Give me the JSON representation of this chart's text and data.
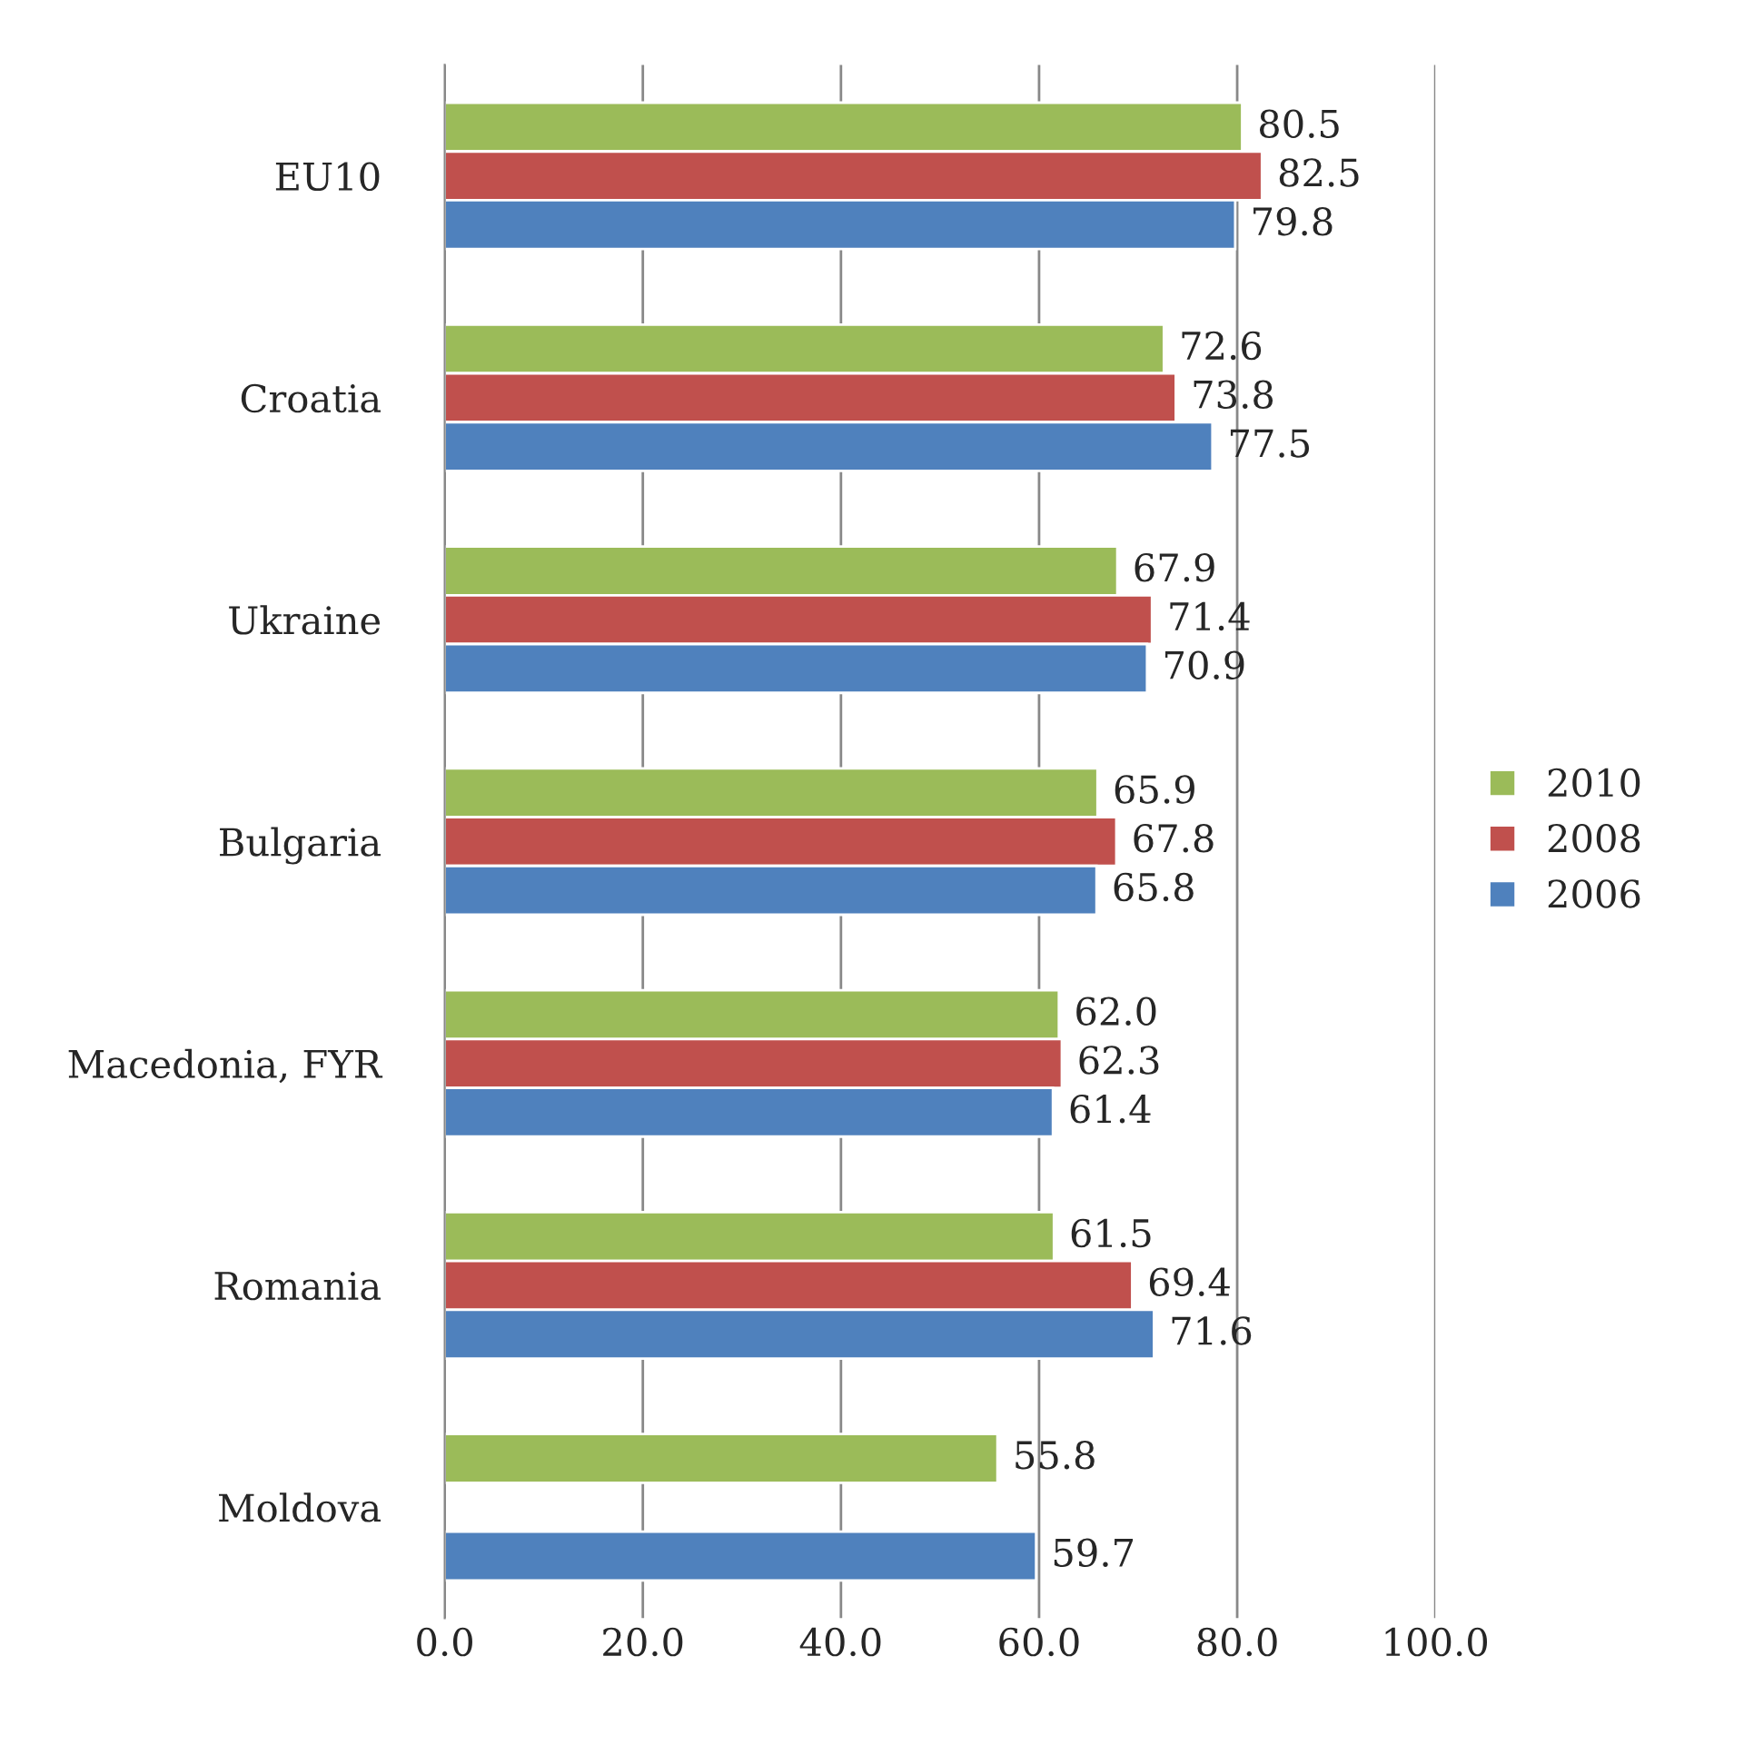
{
  "chart_data": {
    "type": "bar",
    "orientation": "horizontal",
    "categories": [
      "EU10",
      "Croatia",
      "Ukraine",
      "Bulgaria",
      "Macedonia, FYR",
      "Romania",
      "Moldova"
    ],
    "series": [
      {
        "name": "2010",
        "color": "#9bbb59",
        "values": [
          80.5,
          72.6,
          67.9,
          65.9,
          62.0,
          61.5,
          55.8
        ],
        "value_labels": [
          "80.5",
          "72.6",
          "67.9",
          "65.9",
          "62.0",
          "61.5",
          "55.8"
        ]
      },
      {
        "name": "2008",
        "color": "#c0504d",
        "values": [
          82.5,
          73.8,
          71.4,
          67.8,
          62.3,
          69.4,
          null
        ],
        "value_labels": [
          "82.5",
          "73.8",
          "71.4",
          "67.8",
          "62.3",
          "69.4",
          null
        ]
      },
      {
        "name": "2006",
        "color": "#4f81bd",
        "values": [
          79.8,
          77.5,
          70.9,
          65.8,
          61.4,
          71.6,
          59.7
        ],
        "value_labels": [
          "79.8",
          "77.5",
          "70.9",
          "65.8",
          "61.4",
          "71.6",
          "59.7"
        ]
      }
    ],
    "xlim": [
      0,
      100
    ],
    "xticks": [
      {
        "value": 0,
        "label": "0.0"
      },
      {
        "value": 20,
        "label": "20.0"
      },
      {
        "value": 40,
        "label": "40.0"
      },
      {
        "value": 60,
        "label": "60.0"
      },
      {
        "value": 80,
        "label": "80.0"
      },
      {
        "value": 100,
        "label": "100.0"
      }
    ],
    "grid": "x",
    "legend": "right"
  }
}
